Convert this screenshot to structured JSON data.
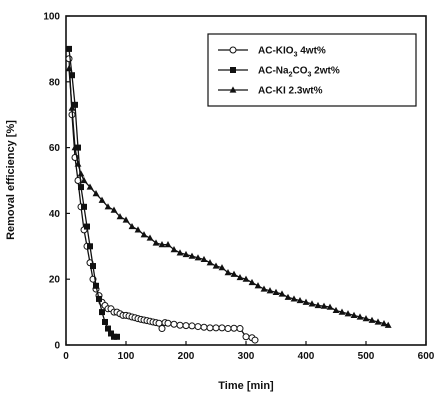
{
  "chart_data": {
    "type": "line",
    "title": "",
    "xlabel": "Time [min]",
    "ylabel": "Removal efficiency [%]",
    "xlim": [
      0,
      600
    ],
    "ylim": [
      0,
      100
    ],
    "xticks": [
      0,
      100,
      200,
      300,
      400,
      500,
      600
    ],
    "yticks": [
      0,
      20,
      40,
      60,
      80,
      100
    ],
    "grid": false,
    "legend_position": "top-right",
    "series": [
      {
        "name": "AC-KIO3 4wt%",
        "legend_text": {
          "base": "AC-KIO",
          "sub": "3",
          "tail": " 4wt%"
        },
        "marker": "circle-open",
        "x": [
          5,
          10,
          15,
          20,
          25,
          30,
          35,
          40,
          45,
          50,
          55,
          60,
          65,
          70,
          75,
          80,
          85,
          90,
          95,
          100,
          105,
          110,
          115,
          120,
          125,
          130,
          135,
          140,
          145,
          150,
          155,
          160,
          165,
          170,
          180,
          190,
          200,
          210,
          220,
          230,
          240,
          250,
          260,
          270,
          280,
          290,
          300,
          310,
          315
        ],
        "y": [
          87,
          70,
          57,
          50,
          42,
          35,
          30,
          25,
          20,
          17,
          15,
          13,
          12,
          11,
          11,
          10,
          10,
          9.5,
          9,
          9,
          8.8,
          8.5,
          8.3,
          8,
          7.8,
          7.6,
          7.4,
          7.2,
          7,
          6.8,
          6.6,
          5,
          6.8,
          6.6,
          6.3,
          6,
          5.9,
          5.8,
          5.6,
          5.4,
          5.2,
          5.2,
          5.2,
          5.0,
          5.1,
          5.0,
          2.5,
          2.2,
          1.5
        ]
      },
      {
        "name": "AC-Na2CO3 2wt%",
        "legend_text": {
          "base": "AC-Na",
          "sub": "2",
          "mid": "CO",
          "sub2": "3",
          "tail": " 2wt%"
        },
        "marker": "square-filled",
        "x": [
          5,
          10,
          15,
          20,
          25,
          30,
          35,
          40,
          45,
          50,
          55,
          60,
          65,
          70,
          75,
          80,
          85
        ],
        "y": [
          90,
          82,
          73,
          60,
          48,
          42,
          36,
          30,
          24,
          18,
          14,
          10,
          7,
          5,
          3.5,
          2.5,
          2.5
        ]
      },
      {
        "name": "AC-KI 2.3wt%",
        "legend_text": {
          "base": "AC-KI",
          "tail": " 2.3wt%"
        },
        "marker": "triangle-filled",
        "x": [
          5,
          10,
          15,
          20,
          25,
          30,
          40,
          50,
          60,
          70,
          80,
          90,
          100,
          110,
          120,
          130,
          140,
          150,
          160,
          170,
          180,
          190,
          200,
          210,
          220,
          230,
          240,
          250,
          260,
          270,
          280,
          290,
          300,
          310,
          320,
          330,
          340,
          350,
          360,
          370,
          380,
          390,
          400,
          410,
          420,
          430,
          440,
          450,
          460,
          470,
          480,
          490,
          500,
          510,
          520,
          530,
          537
        ],
        "y": [
          84,
          72,
          60,
          55,
          52,
          50,
          48,
          46,
          44,
          42,
          41,
          39,
          38,
          36,
          35,
          33.5,
          32.5,
          31,
          30.5,
          30.5,
          29,
          28,
          27.5,
          27,
          26.5,
          26,
          25,
          24,
          23.5,
          22,
          21.5,
          20.5,
          20,
          19,
          18,
          17,
          16.5,
          16,
          15.5,
          14.5,
          14,
          13.5,
          13,
          12.5,
          12,
          11.8,
          11.5,
          10.5,
          10,
          9.5,
          9,
          8.5,
          8,
          7.5,
          7,
          6.5,
          6
        ]
      }
    ]
  }
}
